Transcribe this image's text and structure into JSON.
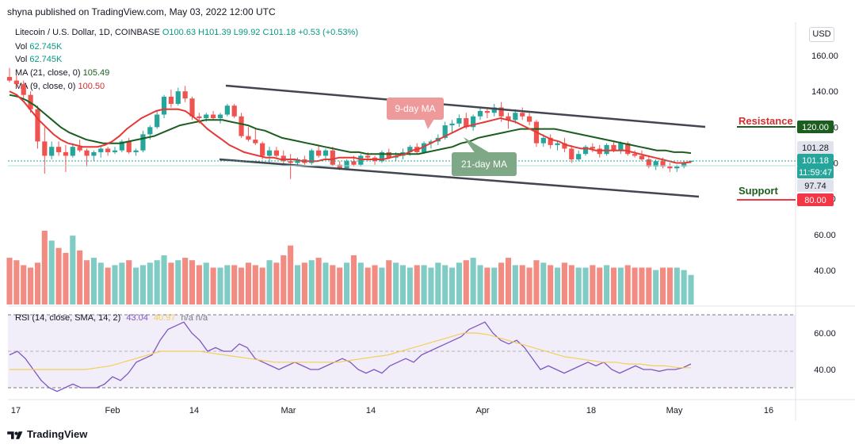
{
  "header": {
    "published": "shyna published on TradingView.com, May 03, 2022 12:00 UTC",
    "symbol": "Litecoin / U.S. Dollar, 1D, COINBASE",
    "open": "O100.63",
    "high": "H101.39",
    "low": "L99.92",
    "close": "C101.18",
    "change": "+0.53 (+0.53%)",
    "vol_label": "Vol",
    "vol_value": "62.745K",
    "ma21_label": "MA (21, close, 0)",
    "ma21_value": "105.49",
    "ma9_label": "MA (9, close, 0)",
    "ma9_value": "100.50",
    "currency": "USD"
  },
  "price_axis": {
    "ticks": [
      "160.00",
      "140.00",
      "120.00",
      "100.00",
      "80.00",
      "60.00",
      "40.00"
    ],
    "badges": [
      {
        "value": "120.00",
        "color": "#1b5e20"
      },
      {
        "value": "101.28",
        "color": "#e0e3eb"
      },
      {
        "value": "101.18",
        "color": "#26a69a"
      },
      {
        "value": "11:59:47",
        "color": "#26a69a"
      },
      {
        "value": "97.74",
        "color": "#e0e3eb"
      },
      {
        "value": "80.00",
        "color": "#f23645"
      }
    ]
  },
  "rsi": {
    "label": "RSI (14, close, SMA, 14, 2)",
    "value1": "43.04",
    "value2": "40.97",
    "na": "n/a  n/a",
    "ticks": [
      "60.00",
      "40.00"
    ]
  },
  "time_axis": [
    "17",
    "Feb",
    "14",
    "Mar",
    "14",
    "Apr",
    "18",
    "May",
    "16"
  ],
  "annotations": {
    "ma9": "9-day MA",
    "ma21": "21-day MA",
    "resistance": "Resistance",
    "support": "Support"
  },
  "footer": {
    "brand": "TradingView"
  },
  "colors": {
    "up": "#26a69a",
    "down": "#ef5350",
    "ma9": "#e53935",
    "ma21": "#1b5e20",
    "rsi": "#7e57c2",
    "rsi_sma": "#f2cf5b"
  },
  "chart_data": {
    "type": "candlestick",
    "symbol": "Litecoin / U.S. Dollar",
    "interval": "1D",
    "ylim": [
      20,
      168
    ],
    "candles": [
      {
        "o": 148,
        "h": 153,
        "l": 145,
        "c": 146
      },
      {
        "o": 146,
        "h": 149,
        "l": 142,
        "c": 144
      },
      {
        "o": 144,
        "h": 146,
        "l": 136,
        "c": 138
      },
      {
        "o": 138,
        "h": 140,
        "l": 128,
        "c": 130
      },
      {
        "o": 130,
        "h": 132,
        "l": 108,
        "c": 112
      },
      {
        "o": 112,
        "h": 120,
        "l": 94,
        "c": 104
      },
      {
        "o": 104,
        "h": 112,
        "l": 102,
        "c": 109
      },
      {
        "o": 109,
        "h": 112,
        "l": 104,
        "c": 106
      },
      {
        "o": 106,
        "h": 110,
        "l": 95,
        "c": 104
      },
      {
        "o": 104,
        "h": 111,
        "l": 103,
        "c": 109
      },
      {
        "o": 109,
        "h": 113,
        "l": 106,
        "c": 107
      },
      {
        "o": 107,
        "h": 108,
        "l": 98,
        "c": 104
      },
      {
        "o": 104,
        "h": 107,
        "l": 101,
        "c": 106
      },
      {
        "o": 106,
        "h": 109,
        "l": 103,
        "c": 108
      },
      {
        "o": 108,
        "h": 109,
        "l": 104,
        "c": 106
      },
      {
        "o": 106,
        "h": 109,
        "l": 105,
        "c": 107
      },
      {
        "o": 107,
        "h": 113,
        "l": 106,
        "c": 112
      },
      {
        "o": 112,
        "h": 114,
        "l": 105,
        "c": 106
      },
      {
        "o": 106,
        "h": 108,
        "l": 104,
        "c": 107
      },
      {
        "o": 107,
        "h": 118,
        "l": 106,
        "c": 116
      },
      {
        "o": 116,
        "h": 121,
        "l": 113,
        "c": 120
      },
      {
        "o": 120,
        "h": 129,
        "l": 119,
        "c": 127
      },
      {
        "o": 127,
        "h": 138,
        "l": 125,
        "c": 137
      },
      {
        "o": 137,
        "h": 141,
        "l": 131,
        "c": 133
      },
      {
        "o": 133,
        "h": 142,
        "l": 132,
        "c": 140
      },
      {
        "o": 140,
        "h": 143,
        "l": 134,
        "c": 136
      },
      {
        "o": 136,
        "h": 137,
        "l": 124,
        "c": 126
      },
      {
        "o": 126,
        "h": 128,
        "l": 122,
        "c": 125
      },
      {
        "o": 125,
        "h": 128,
        "l": 123,
        "c": 127
      },
      {
        "o": 127,
        "h": 129,
        "l": 124,
        "c": 125
      },
      {
        "o": 125,
        "h": 128,
        "l": 122,
        "c": 127
      },
      {
        "o": 127,
        "h": 133,
        "l": 126,
        "c": 132
      },
      {
        "o": 132,
        "h": 133,
        "l": 125,
        "c": 126
      },
      {
        "o": 126,
        "h": 128,
        "l": 114,
        "c": 115
      },
      {
        "o": 115,
        "h": 120,
        "l": 112,
        "c": 113
      },
      {
        "o": 113,
        "h": 119,
        "l": 110,
        "c": 111
      },
      {
        "o": 111,
        "h": 112,
        "l": 102,
        "c": 104
      },
      {
        "o": 104,
        "h": 109,
        "l": 100,
        "c": 107
      },
      {
        "o": 107,
        "h": 109,
        "l": 103,
        "c": 104
      },
      {
        "o": 104,
        "h": 107,
        "l": 99,
        "c": 101
      },
      {
        "o": 101,
        "h": 105,
        "l": 91,
        "c": 100
      },
      {
        "o": 100,
        "h": 103,
        "l": 98,
        "c": 102
      },
      {
        "o": 102,
        "h": 104,
        "l": 99,
        "c": 100
      },
      {
        "o": 100,
        "h": 108,
        "l": 99,
        "c": 107
      },
      {
        "o": 107,
        "h": 110,
        "l": 103,
        "c": 104
      },
      {
        "o": 104,
        "h": 108,
        "l": 102,
        "c": 107
      },
      {
        "o": 107,
        "h": 109,
        "l": 98,
        "c": 99
      },
      {
        "o": 99,
        "h": 101,
        "l": 96,
        "c": 97
      },
      {
        "o": 97,
        "h": 102,
        "l": 96,
        "c": 101
      },
      {
        "o": 101,
        "h": 104,
        "l": 98,
        "c": 99
      },
      {
        "o": 99,
        "h": 105,
        "l": 98,
        "c": 104
      },
      {
        "o": 104,
        "h": 106,
        "l": 101,
        "c": 103
      },
      {
        "o": 103,
        "h": 104,
        "l": 99,
        "c": 101
      },
      {
        "o": 101,
        "h": 107,
        "l": 100,
        "c": 106
      },
      {
        "o": 106,
        "h": 108,
        "l": 102,
        "c": 103
      },
      {
        "o": 103,
        "h": 106,
        "l": 101,
        "c": 104
      },
      {
        "o": 104,
        "h": 108,
        "l": 102,
        "c": 106
      },
      {
        "o": 106,
        "h": 110,
        "l": 104,
        "c": 109
      },
      {
        "o": 109,
        "h": 111,
        "l": 105,
        "c": 106
      },
      {
        "o": 106,
        "h": 112,
        "l": 105,
        "c": 111
      },
      {
        "o": 111,
        "h": 113,
        "l": 108,
        "c": 112
      },
      {
        "o": 112,
        "h": 116,
        "l": 110,
        "c": 114
      },
      {
        "o": 114,
        "h": 123,
        "l": 113,
        "c": 121
      },
      {
        "o": 121,
        "h": 124,
        "l": 117,
        "c": 122
      },
      {
        "o": 122,
        "h": 127,
        "l": 120,
        "c": 125
      },
      {
        "o": 125,
        "h": 128,
        "l": 119,
        "c": 120
      },
      {
        "o": 120,
        "h": 127,
        "l": 118,
        "c": 126
      },
      {
        "o": 126,
        "h": 131,
        "l": 124,
        "c": 129
      },
      {
        "o": 129,
        "h": 131,
        "l": 125,
        "c": 128
      },
      {
        "o": 128,
        "h": 133,
        "l": 126,
        "c": 131
      },
      {
        "o": 131,
        "h": 134,
        "l": 123,
        "c": 126
      },
      {
        "o": 126,
        "h": 128,
        "l": 119,
        "c": 124
      },
      {
        "o": 124,
        "h": 130,
        "l": 122,
        "c": 128
      },
      {
        "o": 128,
        "h": 131,
        "l": 124,
        "c": 126
      },
      {
        "o": 126,
        "h": 128,
        "l": 121,
        "c": 123
      },
      {
        "o": 123,
        "h": 124,
        "l": 109,
        "c": 111
      },
      {
        "o": 111,
        "h": 116,
        "l": 109,
        "c": 114
      },
      {
        "o": 114,
        "h": 116,
        "l": 108,
        "c": 110
      },
      {
        "o": 110,
        "h": 112,
        "l": 107,
        "c": 111
      },
      {
        "o": 111,
        "h": 114,
        "l": 106,
        "c": 108
      },
      {
        "o": 108,
        "h": 110,
        "l": 100,
        "c": 102
      },
      {
        "o": 102,
        "h": 107,
        "l": 101,
        "c": 105
      },
      {
        "o": 105,
        "h": 110,
        "l": 104,
        "c": 109
      },
      {
        "o": 109,
        "h": 111,
        "l": 106,
        "c": 108
      },
      {
        "o": 108,
        "h": 110,
        "l": 103,
        "c": 105
      },
      {
        "o": 105,
        "h": 111,
        "l": 104,
        "c": 110
      },
      {
        "o": 110,
        "h": 112,
        "l": 106,
        "c": 107
      },
      {
        "o": 107,
        "h": 112,
        "l": 105,
        "c": 111
      },
      {
        "o": 111,
        "h": 112,
        "l": 104,
        "c": 105
      },
      {
        "o": 105,
        "h": 107,
        "l": 103,
        "c": 104
      },
      {
        "o": 104,
        "h": 107,
        "l": 101,
        "c": 102
      },
      {
        "o": 102,
        "h": 104,
        "l": 97,
        "c": 98
      },
      {
        "o": 98,
        "h": 102,
        "l": 96,
        "c": 101
      },
      {
        "o": 101,
        "h": 103,
        "l": 97,
        "c": 98
      },
      {
        "o": 98,
        "h": 100,
        "l": 95,
        "c": 97
      },
      {
        "o": 97,
        "h": 99,
        "l": 95,
        "c": 98
      },
      {
        "o": 98,
        "h": 101,
        "l": 97,
        "c": 100
      },
      {
        "o": 100.63,
        "h": 101.39,
        "l": 99.92,
        "c": 101.18
      }
    ],
    "volume": [
      38,
      36,
      32,
      30,
      34,
      60,
      52,
      46,
      42,
      56,
      44,
      36,
      38,
      34,
      30,
      32,
      34,
      36,
      30,
      32,
      34,
      36,
      40,
      34,
      36,
      38,
      36,
      32,
      34,
      30,
      30,
      32,
      32,
      30,
      34,
      32,
      30,
      36,
      34,
      40,
      48,
      32,
      34,
      36,
      38,
      34,
      32,
      30,
      34,
      40,
      34,
      30,
      32,
      30,
      36,
      34,
      32,
      30,
      32,
      32,
      30,
      34,
      32,
      30,
      34,
      36,
      38,
      32,
      30,
      30,
      34,
      38,
      32,
      32,
      30,
      36,
      34,
      32,
      30,
      34,
      32,
      30,
      30,
      32,
      30,
      32,
      30,
      30,
      32,
      30,
      30,
      30,
      28,
      30,
      30,
      30,
      28,
      24
    ],
    "ma9": [
      140,
      138,
      134,
      129,
      124,
      120,
      116,
      113,
      111,
      110,
      109,
      109,
      109,
      110,
      112,
      115,
      119,
      122,
      125,
      127,
      129,
      130,
      130,
      130,
      129,
      126,
      123,
      119,
      116,
      113,
      110,
      108,
      106,
      105,
      104,
      103,
      103,
      102,
      102,
      102,
      101,
      101,
      101,
      102,
      102,
      103,
      103,
      103,
      102,
      102,
      102,
      102,
      103,
      104,
      105,
      107,
      108,
      110,
      112,
      114,
      116,
      118,
      120,
      121,
      122,
      123,
      124,
      125,
      124,
      123,
      121,
      119,
      117,
      115,
      113,
      112,
      110,
      109,
      108,
      108,
      107,
      107,
      107,
      107,
      107,
      106,
      105,
      104,
      103,
      102,
      101,
      100,
      100,
      100.5
    ],
    "ma21": [
      138,
      137,
      135,
      132,
      128,
      124,
      120,
      117,
      115,
      113,
      112,
      111,
      111,
      111,
      112,
      113,
      114,
      115,
      117,
      119,
      121,
      122,
      123,
      124,
      124,
      124,
      123,
      122,
      121,
      119,
      118,
      116,
      114,
      113,
      112,
      111,
      110,
      109,
      108,
      107,
      106,
      106,
      105,
      105,
      105,
      105,
      105,
      105,
      105,
      106,
      107,
      108,
      109,
      111,
      112,
      114,
      115,
      116,
      117,
      118,
      119,
      119,
      119,
      119,
      119,
      118,
      117,
      116,
      115,
      114,
      113,
      112,
      111,
      110,
      109,
      108,
      107,
      107,
      106,
      106,
      105.49
    ],
    "rsi": [
      48,
      50,
      46,
      40,
      34,
      30,
      28,
      30,
      32,
      30,
      30,
      30,
      32,
      36,
      34,
      38,
      44,
      46,
      48,
      56,
      62,
      64,
      66,
      60,
      56,
      50,
      52,
      50,
      50,
      54,
      52,
      46,
      44,
      42,
      40,
      42,
      44,
      42,
      40,
      40,
      42,
      44,
      46,
      44,
      40,
      38,
      40,
      38,
      42,
      44,
      46,
      44,
      48,
      50,
      52,
      54,
      56,
      58,
      62,
      64,
      66,
      60,
      56,
      54,
      56,
      52,
      46,
      40,
      42,
      40,
      38,
      40,
      42,
      44,
      42,
      44,
      40,
      38,
      40,
      42,
      40,
      40,
      39,
      40,
      40,
      41,
      43.04
    ],
    "rsi_sma": [
      40,
      40,
      40,
      40,
      40,
      40,
      40,
      41,
      42,
      44,
      46,
      48,
      50,
      50,
      50,
      50,
      49,
      48,
      47,
      46,
      45,
      44,
      44,
      44,
      44,
      44,
      44,
      45,
      46,
      47,
      48,
      50,
      52,
      54,
      56,
      58,
      60,
      60,
      59,
      57,
      55,
      53,
      51,
      49,
      47,
      46,
      45,
      44,
      44,
      43,
      43,
      42,
      42,
      41,
      40.97
    ]
  }
}
